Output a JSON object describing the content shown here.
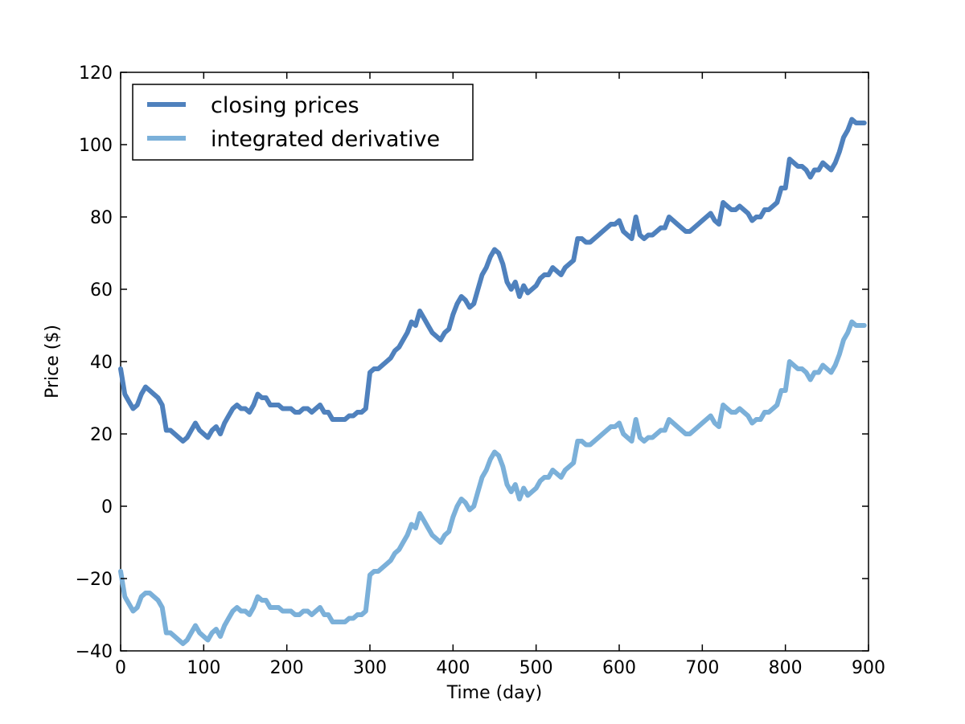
{
  "chart_data": {
    "type": "line",
    "title": "",
    "xlabel": "Time (day)",
    "ylabel": "Price ($)",
    "xlim": [
      0,
      900
    ],
    "ylim": [
      -40,
      120
    ],
    "xticks": [
      0,
      100,
      200,
      300,
      400,
      500,
      600,
      700,
      800,
      900
    ],
    "yticks": [
      -40,
      -20,
      0,
      20,
      40,
      60,
      80,
      100,
      120
    ],
    "ytick_labels": [
      "−40",
      "−20",
      "0",
      "20",
      "40",
      "60",
      "80",
      "100",
      "120"
    ],
    "grid": false,
    "legend_position": "top-left",
    "x": [
      0,
      5,
      10,
      15,
      20,
      25,
      30,
      35,
      40,
      45,
      50,
      55,
      60,
      65,
      70,
      75,
      80,
      85,
      90,
      95,
      100,
      105,
      110,
      115,
      120,
      125,
      130,
      135,
      140,
      145,
      150,
      155,
      160,
      165,
      170,
      175,
      180,
      185,
      190,
      195,
      200,
      205,
      210,
      215,
      220,
      225,
      230,
      235,
      240,
      245,
      250,
      255,
      260,
      265,
      270,
      275,
      280,
      285,
      290,
      295,
      300,
      305,
      310,
      315,
      320,
      325,
      330,
      335,
      340,
      345,
      350,
      355,
      360,
      365,
      370,
      375,
      380,
      385,
      390,
      395,
      400,
      405,
      410,
      415,
      420,
      425,
      430,
      435,
      440,
      445,
      450,
      455,
      460,
      465,
      470,
      475,
      480,
      485,
      490,
      495,
      500,
      505,
      510,
      515,
      520,
      525,
      530,
      535,
      540,
      545,
      550,
      555,
      560,
      565,
      570,
      575,
      580,
      585,
      590,
      595,
      600,
      605,
      610,
      615,
      620,
      625,
      630,
      635,
      640,
      645,
      650,
      655,
      660,
      665,
      670,
      675,
      680,
      685,
      690,
      695,
      700,
      705,
      710,
      715,
      720,
      725,
      730,
      735,
      740,
      745,
      750,
      755,
      760,
      765,
      770,
      775,
      780,
      785,
      790,
      795,
      800,
      805,
      810,
      815,
      820,
      825,
      830,
      835,
      840,
      845,
      850,
      855,
      860,
      865,
      870,
      875,
      880,
      885,
      890,
      895
    ],
    "series": [
      {
        "name": "closing prices",
        "color": "#4f81bd",
        "values": [
          38,
          31,
          29,
          27,
          28,
          31,
          33,
          32,
          31,
          30,
          28,
          21,
          21,
          20,
          19,
          18,
          19,
          21,
          23,
          21,
          20,
          19,
          21,
          22,
          20,
          23,
          25,
          27,
          28,
          27,
          27,
          26,
          28,
          31,
          30,
          30,
          28,
          28,
          28,
          27,
          27,
          27,
          26,
          26,
          27,
          27,
          26,
          27,
          28,
          26,
          26,
          24,
          24,
          24,
          24,
          25,
          25,
          26,
          26,
          27,
          37,
          38,
          38,
          39,
          40,
          41,
          43,
          44,
          46,
          48,
          51,
          50,
          54,
          52,
          50,
          48,
          47,
          46,
          48,
          49,
          53,
          56,
          58,
          57,
          55,
          56,
          60,
          64,
          66,
          69,
          71,
          70,
          67,
          62,
          60,
          62,
          58,
          61,
          59,
          60,
          61,
          63,
          64,
          64,
          66,
          65,
          64,
          66,
          67,
          68,
          74,
          74,
          73,
          73,
          74,
          75,
          76,
          77,
          78,
          78,
          79,
          76,
          75,
          74,
          80,
          75,
          74,
          75,
          75,
          76,
          77,
          77,
          80,
          79,
          78,
          77,
          76,
          76,
          77,
          78,
          79,
          80,
          81,
          79,
          78,
          84,
          83,
          82,
          82,
          83,
          82,
          81,
          79,
          80,
          80,
          82,
          82,
          83,
          84,
          88,
          88,
          96,
          95,
          94,
          94,
          93,
          91,
          93,
          93,
          95,
          94,
          93,
          95,
          98,
          102,
          104,
          107,
          106,
          106,
          106
        ]
      },
      {
        "name": "integrated derivative",
        "color": "#7bb0d9",
        "values": [
          -18,
          -25,
          -27,
          -29,
          -28,
          -25,
          -24,
          -24,
          -25,
          -26,
          -28,
          -35,
          -35,
          -36,
          -37,
          -38,
          -37,
          -35,
          -33,
          -35,
          -36,
          -37,
          -35,
          -34,
          -36,
          -33,
          -31,
          -29,
          -28,
          -29,
          -29,
          -30,
          -28,
          -25,
          -26,
          -26,
          -28,
          -28,
          -28,
          -29,
          -29,
          -29,
          -30,
          -30,
          -29,
          -29,
          -30,
          -29,
          -28,
          -30,
          -30,
          -32,
          -32,
          -32,
          -32,
          -31,
          -31,
          -30,
          -30,
          -29,
          -19,
          -18,
          -18,
          -17,
          -16,
          -15,
          -13,
          -12,
          -10,
          -8,
          -5,
          -6,
          -2,
          -4,
          -6,
          -8,
          -9,
          -10,
          -8,
          -7,
          -3,
          0,
          2,
          1,
          -1,
          0,
          4,
          8,
          10,
          13,
          15,
          14,
          11,
          6,
          4,
          6,
          2,
          5,
          3,
          4,
          5,
          7,
          8,
          8,
          10,
          9,
          8,
          10,
          11,
          12,
          18,
          18,
          17,
          17,
          18,
          19,
          20,
          21,
          22,
          22,
          23,
          20,
          19,
          18,
          24,
          19,
          18,
          19,
          19,
          20,
          21,
          21,
          24,
          23,
          22,
          21,
          20,
          20,
          21,
          22,
          23,
          24,
          25,
          23,
          22,
          28,
          27,
          26,
          26,
          27,
          26,
          25,
          23,
          24,
          24,
          26,
          26,
          27,
          28,
          32,
          32,
          40,
          39,
          38,
          38,
          37,
          35,
          37,
          37,
          39,
          38,
          37,
          39,
          42,
          46,
          48,
          51,
          50,
          50,
          50
        ]
      }
    ]
  }
}
